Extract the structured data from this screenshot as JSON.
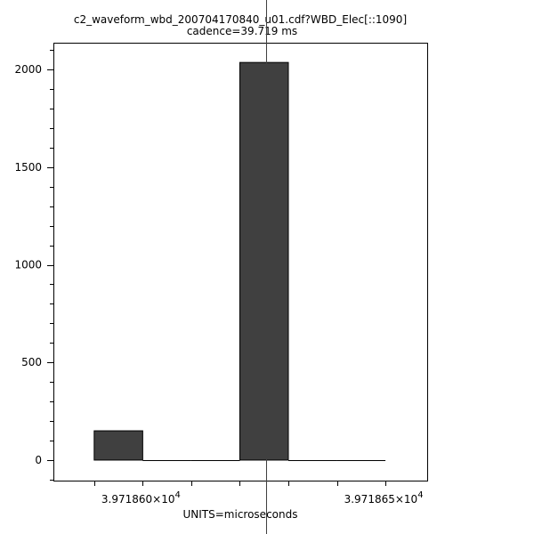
{
  "chart_data": {
    "type": "bar",
    "title": "c2_waveform_wbd_200704170840_u01.cdf?WBD_Elec[::1090]",
    "subtitle": "cadence=39.719 ms",
    "xlabel": "UNITS=microseconds",
    "ylabel": "",
    "bin_edges": [
      39718.59,
      39718.6,
      39718.61,
      39718.62,
      39718.63,
      39718.64,
      39718.65
    ],
    "values": [
      150,
      0,
      0,
      2036,
      0,
      0
    ],
    "xlim": [
      39718.5816,
      39718.6586
    ],
    "ylim": [
      -105,
      2137
    ],
    "y_ticks": [
      0,
      500,
      1000,
      1500,
      2000
    ],
    "y_tick_labels": [
      "0",
      "500",
      "1000",
      "1500",
      "2000"
    ],
    "x_ticks": [
      39718.6,
      39718.65
    ],
    "x_tick_labels": [
      {
        "mantissa": "3.971860×10",
        "exp": "4"
      },
      {
        "mantissa": "3.971865×10",
        "exp": "4"
      }
    ],
    "cursor_x": 39718.6255,
    "grid": false,
    "colors": {
      "bar": "#404040",
      "axis": "#000000"
    }
  }
}
